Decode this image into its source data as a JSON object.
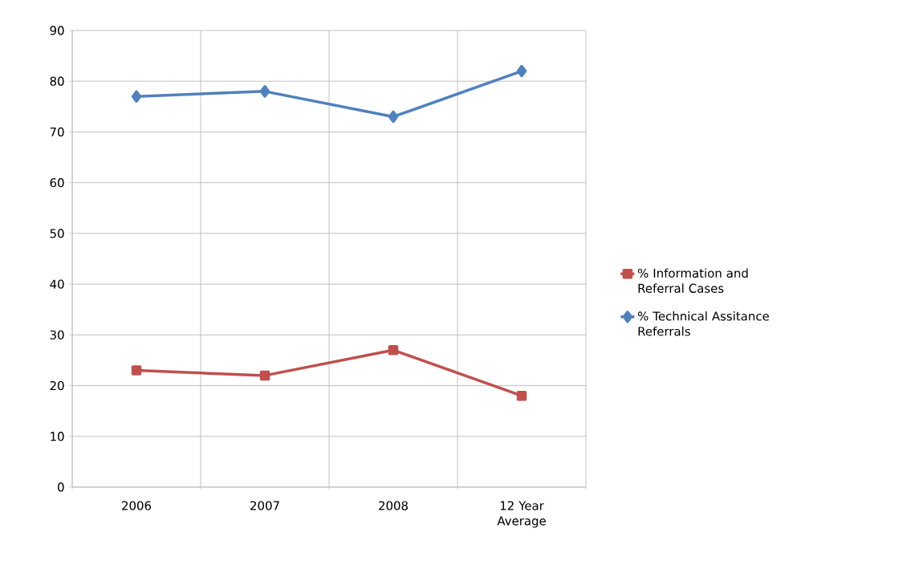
{
  "chart_data": {
    "type": "line",
    "categories": [
      "2006",
      "2007",
      "2008",
      "12 Year Average"
    ],
    "series": [
      {
        "name": "% Information and Referral Cases",
        "color": "#c0504d",
        "marker": "square",
        "values": [
          23,
          22,
          27,
          18
        ]
      },
      {
        "name": "% Technical Assitance Referrals",
        "color": "#4f81bd",
        "marker": "diamond",
        "values": [
          77,
          78,
          73,
          82
        ]
      }
    ],
    "ylim": [
      0,
      90
    ],
    "yticks": [
      0,
      10,
      20,
      30,
      40,
      50,
      60,
      70,
      80,
      90
    ],
    "grid": true,
    "legend": "right"
  }
}
